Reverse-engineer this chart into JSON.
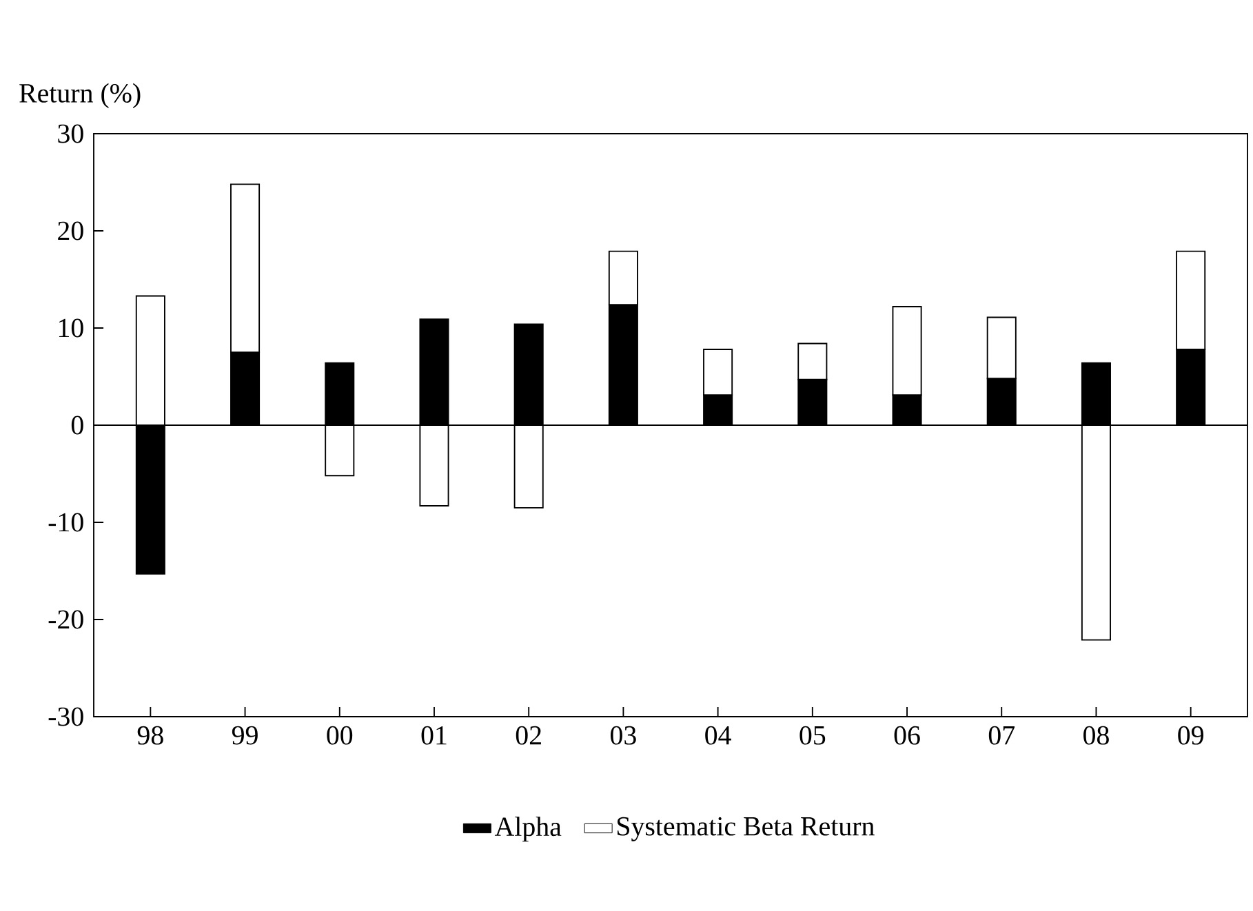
{
  "chart_data": {
    "type": "bar",
    "stacked": true,
    "ylabel": "Return (%)",
    "categories": [
      "98",
      "99",
      "00",
      "01",
      "02",
      "03",
      "04",
      "05",
      "06",
      "07",
      "08",
      "09"
    ],
    "series": [
      {
        "name": "Alpha",
        "color": "#000000",
        "values": [
          -15.3,
          7.5,
          6.4,
          10.9,
          10.4,
          12.4,
          3.1,
          4.7,
          3.1,
          4.8,
          6.4,
          7.8
        ]
      },
      {
        "name": "Systematic Beta Return",
        "color": "#ffffff",
        "values": [
          13.3,
          17.3,
          -5.2,
          -8.3,
          -8.5,
          5.5,
          4.7,
          3.7,
          9.1,
          6.3,
          -22.1,
          10.1
        ]
      }
    ],
    "ylim": [
      -30,
      30
    ],
    "yticks": [
      -30,
      -20,
      -10,
      0,
      10,
      20,
      30
    ],
    "ref_lines": [
      {
        "axis": "y",
        "value": 0
      }
    ],
    "grid": false,
    "legend": "bottom"
  }
}
